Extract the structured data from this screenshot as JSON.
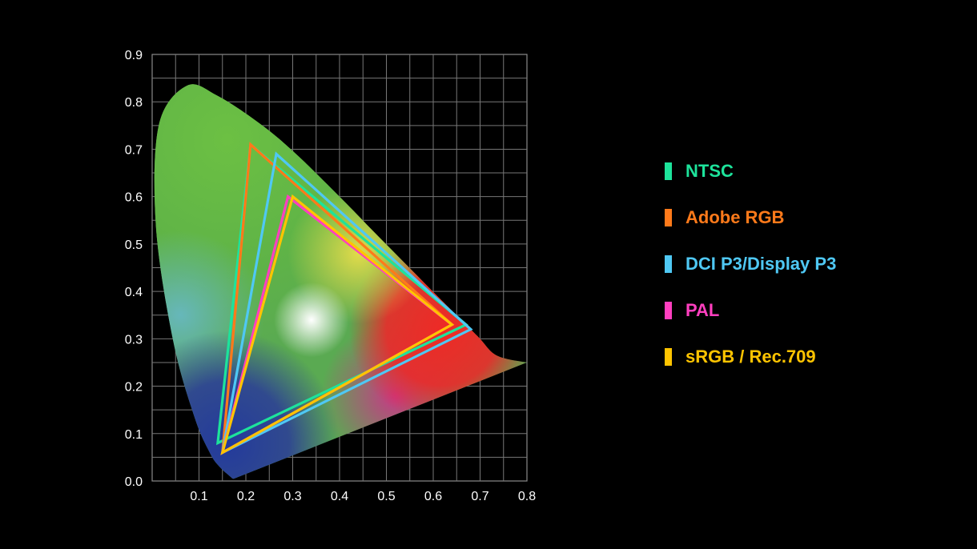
{
  "chart_data": {
    "type": "scatter",
    "title": "",
    "xlabel": "",
    "ylabel": "",
    "xlim": [
      0.0,
      0.8
    ],
    "ylim": [
      0.0,
      0.9
    ],
    "x_ticks": [
      "0.1",
      "0.2",
      "0.3",
      "0.4",
      "0.5",
      "0.6",
      "0.7",
      "0.8"
    ],
    "y_ticks": [
      "0.0",
      "0.1",
      "0.2",
      "0.3",
      "0.4",
      "0.5",
      "0.6",
      "0.7",
      "0.8",
      "0.9"
    ],
    "grid": true,
    "legend_position": "right",
    "spectral_locus": {
      "x": [
        0.175,
        0.172,
        0.166,
        0.144,
        0.124,
        0.091,
        0.045,
        0.008,
        0.014,
        0.074,
        0.139,
        0.23,
        0.305,
        0.4,
        0.472,
        0.545,
        0.617,
        0.694,
        0.735,
        0.8
      ],
      "y": [
        0.005,
        0.005,
        0.01,
        0.03,
        0.058,
        0.133,
        0.295,
        0.538,
        0.75,
        0.834,
        0.813,
        0.754,
        0.692,
        0.6,
        0.527,
        0.454,
        0.382,
        0.306,
        0.265,
        0.25
      ]
    },
    "series": [
      {
        "name": "NTSC",
        "color": "#1de39b",
        "x": [
          0.67,
          0.21,
          0.14
        ],
        "y": [
          0.33,
          0.71,
          0.08
        ]
      },
      {
        "name": "Adobe RGB",
        "color": "#ff7a1a",
        "x": [
          0.64,
          0.21,
          0.15
        ],
        "y": [
          0.33,
          0.71,
          0.06
        ]
      },
      {
        "name": "DCI P3/Display P3",
        "color": "#4fc8f4",
        "x": [
          0.68,
          0.265,
          0.15
        ],
        "y": [
          0.32,
          0.69,
          0.06
        ]
      },
      {
        "name": "PAL",
        "color": "#ff3fbf",
        "x": [
          0.64,
          0.29,
          0.15
        ],
        "y": [
          0.33,
          0.6,
          0.06
        ]
      },
      {
        "name": "sRGB / Rec.709",
        "color": "#ffc400",
        "x": [
          0.64,
          0.3,
          0.15
        ],
        "y": [
          0.33,
          0.6,
          0.06
        ]
      }
    ]
  }
}
